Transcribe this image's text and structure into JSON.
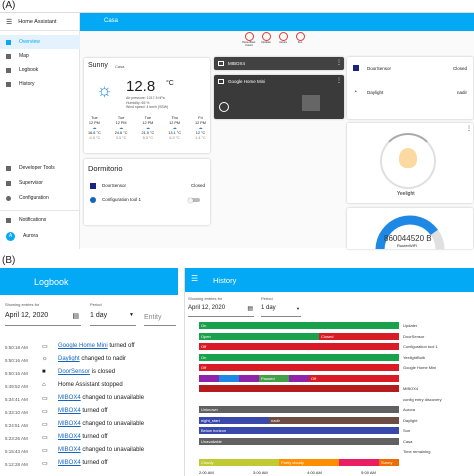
{
  "panel_a": {
    "label": "(A)",
    "sidebar": {
      "title": "Home Assistant",
      "items": [
        {
          "label": "Overview"
        },
        {
          "label": "Map"
        },
        {
          "label": "Logbook"
        },
        {
          "label": "History"
        }
      ],
      "bottom": [
        {
          "label": "Developer Tools"
        },
        {
          "label": "Supervisor"
        },
        {
          "label": "Configuration"
        },
        {
          "label": "Notifications"
        },
        {
          "label": "Aurora"
        }
      ],
      "avatar": "A"
    },
    "topbar": {
      "title": "Casa"
    },
    "badges": [
      {
        "label": "Home Bluet. Found"
      },
      {
        "label": "Up/down"
      },
      {
        "label": "Aurora"
      },
      {
        "label": "Sun"
      }
    ],
    "weather": {
      "condition": "Sunny",
      "location": "Casa",
      "temp": "12.8",
      "unit": "°C",
      "details": [
        "Air pressure: 1017.5 hPa",
        "Humidity: 65 %",
        "Wind speed: 4 km/h (SSW)"
      ],
      "forecast": [
        {
          "day": "Tue",
          "time": "12 PM",
          "hi": "16.6 °C",
          "lo": "-0.5 °C"
        },
        {
          "day": "Tue",
          "time": "12 PM",
          "hi": "24.6 °C",
          "lo": "3.5 °C"
        },
        {
          "day": "Tue",
          "time": "12 PM",
          "hi": "21.9 °C",
          "lo": "5.3 °C"
        },
        {
          "day": "Thu",
          "time": "12 PM",
          "hi": "13.1 °C",
          "lo": "6.3 °C"
        },
        {
          "day": "Fri",
          "time": "12 PM",
          "hi": "12 °C",
          "lo": "1.4 °C"
        }
      ]
    },
    "media1": {
      "name": "MIBOX4"
    },
    "media2": {
      "name": "Google Home Mini"
    },
    "room": {
      "title": "Dormitorio",
      "rows": [
        {
          "name": "DoorSensor",
          "state": "Closed"
        },
        {
          "name": "Configuration tool 1",
          "state": ""
        }
      ]
    },
    "entities": [
      {
        "name": "DoorSensor",
        "state": "Closed"
      },
      {
        "name": "Daylight",
        "state": "nadir"
      }
    ],
    "light": {
      "name": "Yeelight"
    },
    "gauge": {
      "value": "860044520 B",
      "name": "RouterWiFi",
      "fill": 0.8
    }
  },
  "panel_b": {
    "label": "(B)",
    "logbook": {
      "title": "Logbook",
      "showing": "Showing entries for",
      "date": "April 12, 2020",
      "period_label": "Period",
      "period": "1 day",
      "entity": "Entity",
      "entries": [
        {
          "time": "5:50:18 AM",
          "icon": "cast",
          "link": "Google Home Mini",
          "text": " turned off"
        },
        {
          "time": "5:50:16 AM",
          "icon": "sun",
          "link": "Daylight",
          "text": " changed to nadir"
        },
        {
          "time": "5:50:16 AM",
          "icon": "door",
          "link": "DoorSensor",
          "text": " is closed"
        },
        {
          "time": "5:49:52 AM",
          "icon": "home",
          "link": "",
          "text": "Home Assistant stopped"
        },
        {
          "time": "5:34:41 AM",
          "icon": "cast",
          "link": "MIBOX4",
          "text": " changed to unavailable"
        },
        {
          "time": "5:33:10 AM",
          "icon": "cast",
          "link": "MIBOX4",
          "text": " turned off"
        },
        {
          "time": "5:24:51 AM",
          "icon": "cast",
          "link": "MIBOX4",
          "text": " changed to unavailable"
        },
        {
          "time": "5:23:26 AM",
          "icon": "cast",
          "link": "MIBOX4",
          "text": " turned off"
        },
        {
          "time": "5:15:43 AM",
          "icon": "cast",
          "link": "MIBOX4",
          "text": " changed to unavailable"
        },
        {
          "time": "5:12:28 AM",
          "icon": "cast",
          "link": "MIBOX4",
          "text": " turned off"
        }
      ]
    },
    "history": {
      "title": "History",
      "showing": "Showing entries for",
      "date": "April 12, 2020",
      "period_label": "Period",
      "period": "1 day",
      "rows": [
        {
          "label": "Updater",
          "bars": [
            {
              "s": 0,
              "e": 1,
              "c": "#1aa14b",
              "t": "On"
            }
          ]
        },
        {
          "label": "DoorSensor",
          "bars": [
            {
              "s": 0,
              "e": 0.6,
              "c": "#1aa14b",
              "t": "Open"
            },
            {
              "s": 0.6,
              "e": 1,
              "c": "#d81b25",
              "t": "Closed"
            }
          ]
        },
        {
          "label": "Configuration tool 1",
          "bars": [
            {
              "s": 0,
              "e": 1,
              "c": "#d81b25",
              "t": "Off"
            }
          ]
        },
        {
          "label": "YeelightBulb",
          "bars": [
            {
              "s": 0,
              "e": 1,
              "c": "#1aa14b",
              "t": "On"
            }
          ]
        },
        {
          "label": "Google Home Mini",
          "bars": [
            {
              "s": 0,
              "e": 1,
              "c": "#d81b25",
              "t": "Off"
            }
          ]
        },
        {
          "label": "",
          "bars": [
            {
              "s": 0,
              "e": 0.1,
              "c": "#8e24aa",
              "t": ""
            },
            {
              "s": 0.1,
              "e": 0.2,
              "c": "#1e88e5",
              "t": ""
            },
            {
              "s": 0.2,
              "e": 0.3,
              "c": "#8e24aa",
              "t": ""
            },
            {
              "s": 0.3,
              "e": 0.45,
              "c": "#43a047",
              "t": "Paused"
            },
            {
              "s": 0.45,
              "e": 0.55,
              "c": "#8e24aa",
              "t": ""
            },
            {
              "s": 0.55,
              "e": 1,
              "c": "#d81b25",
              "t": "Off"
            }
          ]
        },
        {
          "label": "MIBOX4",
          "bars": [
            {
              "s": 0,
              "e": 1,
              "c": "#b71c1c",
              "t": ""
            }
          ]
        },
        {
          "label": "config entry discovery",
          "bars": []
        },
        {
          "label": "Aurora",
          "bars": [
            {
              "s": 0,
              "e": 1,
              "c": "#616161",
              "t": "Unknown"
            }
          ]
        },
        {
          "label": "Daylight",
          "bars": [
            {
              "s": 0,
              "e": 0.35,
              "c": "#3949ab",
              "t": "night_start"
            },
            {
              "s": 0.35,
              "e": 1,
              "c": "#6d4c41",
              "t": "nadir"
            }
          ]
        },
        {
          "label": "Sun",
          "bars": [
            {
              "s": 0,
              "e": 1,
              "c": "#3949ab",
              "t": "Below horizon"
            }
          ]
        },
        {
          "label": "Casa",
          "bars": [
            {
              "s": 0,
              "e": 1,
              "c": "#616161",
              "t": "Unavailable"
            }
          ]
        },
        {
          "label": "Time remaining",
          "bars": []
        },
        {
          "label": "",
          "bars": [
            {
              "s": 0,
              "e": 0.4,
              "c": "#c0ca33",
              "t": "Cloudy"
            },
            {
              "s": 0.4,
              "e": 0.7,
              "c": "#ff8f00",
              "t": "Partly cloudy"
            },
            {
              "s": 0.7,
              "e": 0.9,
              "c": "#e91e63",
              "t": ""
            },
            {
              "s": 0.9,
              "e": 1,
              "c": "#ef6c00",
              "t": "Sunny"
            }
          ]
        }
      ],
      "ticks": [
        "2:00 AM",
        "3:00 AM",
        "4:00 AM",
        "5:00 AM"
      ]
    }
  }
}
